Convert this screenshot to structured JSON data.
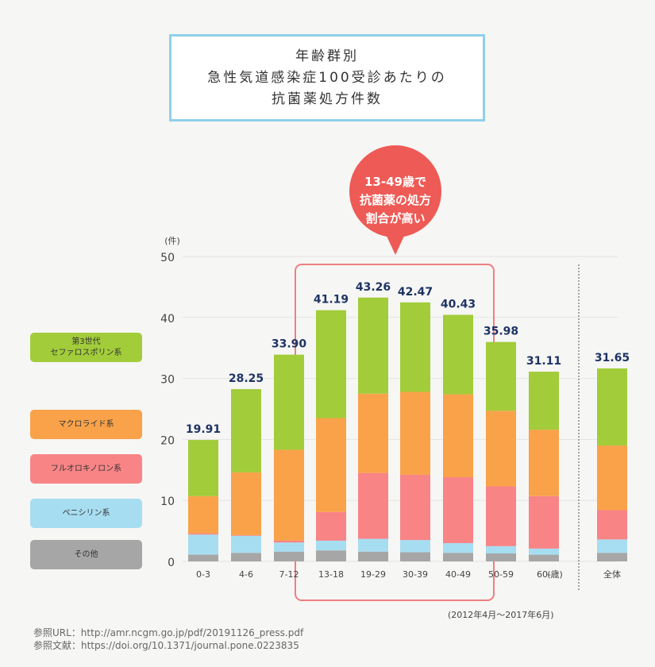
{
  "title_lines": [
    "年齢群別",
    "急性気道感染症100受診あたりの",
    "抗菌薬処方件数"
  ],
  "callout_lines": [
    "13-49歳で",
    "抗菌薬の処方",
    "割合が高い"
  ],
  "period": "(2012年4月〜2017年6月)",
  "sources": [
    "参照URL：http://amr.ncgm.go.jp/pdf/20191126_press.pdf",
    "参照文献：https://doi.org/10.1371/journal.pone.0223835"
  ],
  "colors": {
    "cephalosporin": "#a2cc3a",
    "macrolide": "#f9a24a",
    "fluoroquinolone": "#f88486",
    "penicillin": "#a7ddf1",
    "other": "#a6a6a6",
    "total_label": "#1f3464",
    "highlight": "#ee7f80",
    "callout": "#ee5a55"
  },
  "legend": [
    {
      "key": "cephalosporin",
      "lines": [
        "第3世代",
        "セファロスポリン系"
      ]
    },
    {
      "key": "macrolide",
      "lines": [
        "マクロライド系"
      ]
    },
    {
      "key": "fluoroquinolone",
      "lines": [
        "フルオロキノロン系"
      ]
    },
    {
      "key": "penicillin",
      "lines": [
        "ペニシリン系"
      ]
    },
    {
      "key": "other",
      "lines": [
        "その他"
      ]
    }
  ],
  "chart_data": {
    "type": "bar",
    "stacked": true,
    "ylabel": "(件)",
    "xunit": "(歳)",
    "ylim": [
      0,
      50
    ],
    "yticks": [
      0,
      10,
      20,
      30,
      40,
      50
    ],
    "grid": true,
    "categories": [
      "0-3",
      "4-6",
      "7-12",
      "13-18",
      "19-29",
      "30-39",
      "40-49",
      "50-59",
      "60-",
      "全体"
    ],
    "totals": [
      "19.91",
      "28.25",
      "33.90",
      "41.19",
      "43.26",
      "42.47",
      "40.43",
      "35.98",
      "31.11",
      "31.65"
    ],
    "series": [
      {
        "name": "その他",
        "key": "other",
        "values": [
          1.1,
          1.4,
          1.6,
          1.8,
          1.6,
          1.5,
          1.4,
          1.3,
          1.1,
          1.4
        ]
      },
      {
        "name": "ペニシリン系",
        "key": "penicillin",
        "values": [
          3.3,
          2.8,
          1.5,
          1.6,
          2.1,
          2.0,
          1.6,
          1.2,
          1.0,
          2.2
        ]
      },
      {
        "name": "フルオロキノロン系",
        "key": "fluoroquinolone",
        "values": [
          0.2,
          0.1,
          0.3,
          4.7,
          10.8,
          10.7,
          10.8,
          9.8,
          8.6,
          4.8
        ]
      },
      {
        "name": "マクロライド系",
        "key": "macrolide",
        "values": [
          6.1,
          10.3,
          14.9,
          15.4,
          13.0,
          13.6,
          13.6,
          12.4,
          10.9,
          10.6
        ]
      },
      {
        "name": "第3世代セファロスポリン系",
        "key": "cephalosporin",
        "values": [
          9.21,
          13.65,
          15.6,
          17.69,
          15.76,
          14.67,
          13.03,
          11.28,
          9.51,
          12.65
        ]
      }
    ],
    "highlight_range": [
      "13-18",
      "40-49"
    ],
    "separator_before": "全体"
  }
}
